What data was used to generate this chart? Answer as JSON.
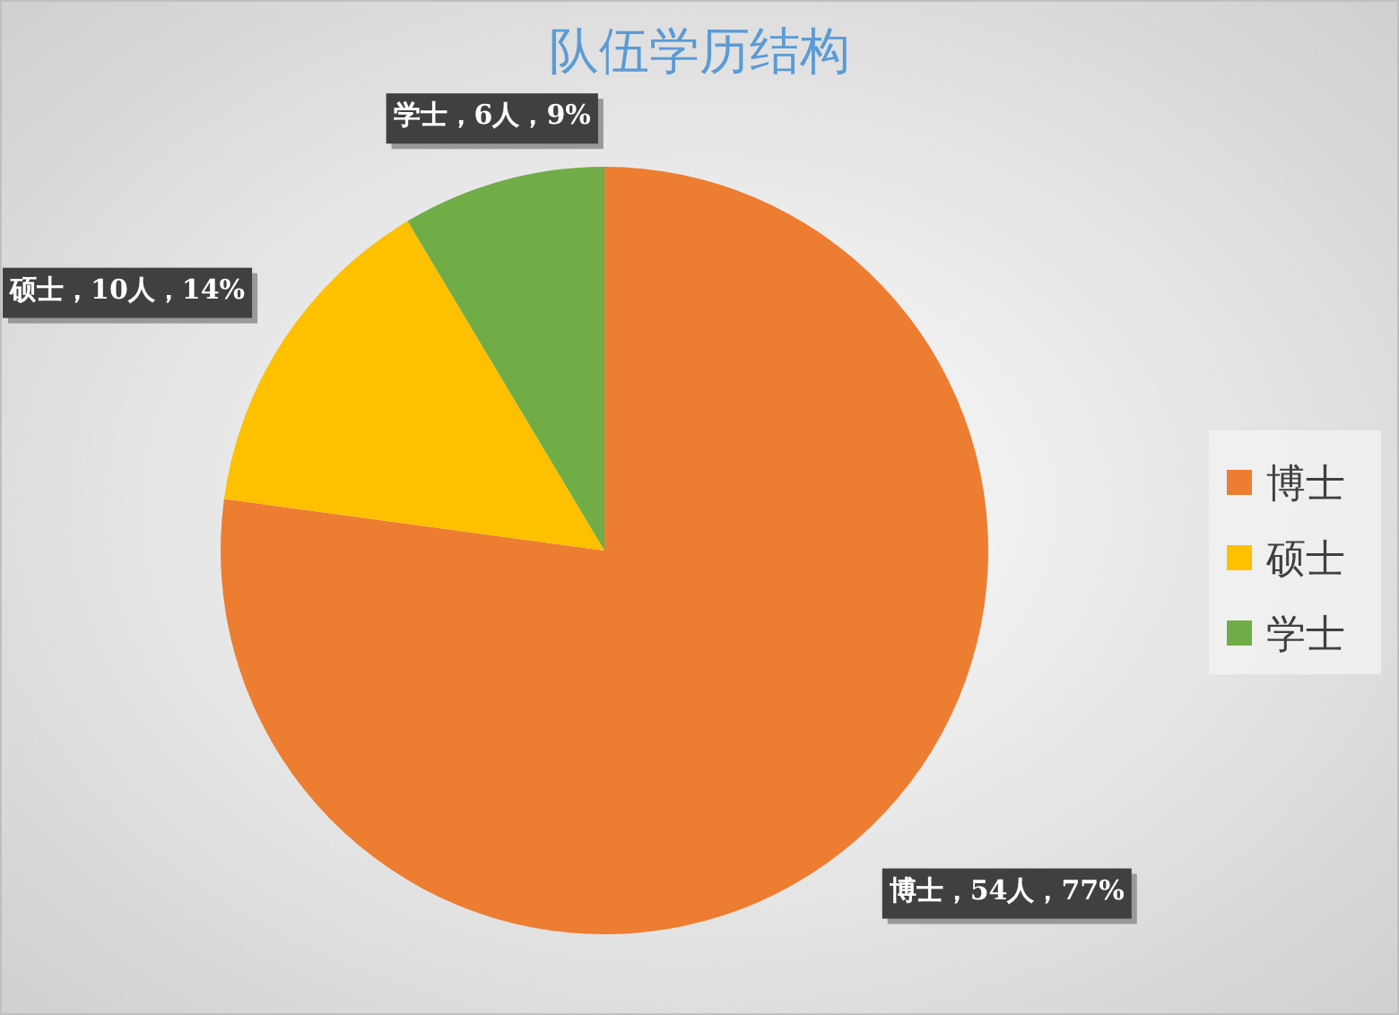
{
  "chart_data": {
    "type": "pie",
    "title": "队伍学历结构",
    "categories": [
      "博士",
      "硕士",
      "学士"
    ],
    "values": [
      54,
      10,
      6
    ],
    "colors": [
      "#ed7d31",
      "#ffc000",
      "#70ad47"
    ],
    "value_labels": [
      "博士，54人，77%",
      "硕士，10人，14%",
      "学士，6人，9%"
    ],
    "legend": "right"
  }
}
